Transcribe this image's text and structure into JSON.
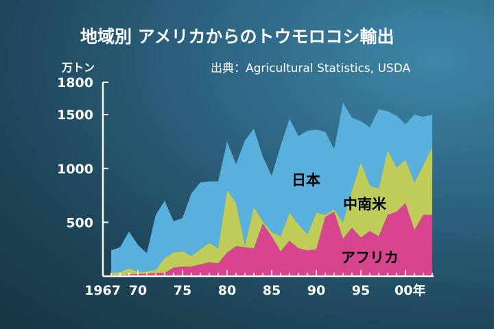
{
  "chart_data": {
    "type": "area",
    "stacked": true,
    "title": "地域別 アメリカからのトウモロコシ輸出",
    "source": "出典：Agricultural Statistics, USDA",
    "unit_label": "万トン",
    "x": [
      1967,
      1968,
      1969,
      1970,
      1971,
      1972,
      1973,
      1974,
      1975,
      1976,
      1977,
      1978,
      1979,
      1980,
      1981,
      1982,
      1983,
      1984,
      1985,
      1986,
      1987,
      1988,
      1989,
      1990,
      1991,
      1992,
      1993,
      1994,
      1995,
      1996,
      1997,
      1998,
      1999,
      2000,
      2001,
      2002,
      2003
    ],
    "x_tick_labels": [
      {
        "x": 1967,
        "text": "1967"
      },
      {
        "x": 1970,
        "text": "70"
      },
      {
        "x": 1975,
        "text": "75"
      },
      {
        "x": 1980,
        "text": "80"
      },
      {
        "x": 1985,
        "text": "85"
      },
      {
        "x": 1990,
        "text": "90"
      },
      {
        "x": 1995,
        "text": "95"
      },
      {
        "x": 2000,
        "text": "00年"
      }
    ],
    "y_ticks": [
      500,
      1000,
      1500,
      1800
    ],
    "ylim": [
      0,
      1800
    ],
    "series": [
      {
        "name": "アフリカ",
        "color": "#d6458e",
        "values": [
          10,
          10,
          15,
          20,
          25,
          30,
          30,
          80,
          90,
          90,
          110,
          130,
          120,
          220,
          280,
          270,
          260,
          490,
          370,
          230,
          330,
          260,
          240,
          250,
          550,
          600,
          350,
          450,
          360,
          420,
          370,
          570,
          600,
          680,
          430,
          570,
          570
        ]
      },
      {
        "name": "中南米",
        "color": "#bfcc5a",
        "values": [
          20,
          30,
          60,
          20,
          20,
          30,
          140,
          140,
          140,
          100,
          140,
          180,
          140,
          580,
          400,
          20,
          380,
          20,
          40,
          140,
          260,
          220,
          150,
          340,
          20,
          20,
          150,
          350,
          700,
          420,
          440,
          600,
          410,
          400,
          440,
          460,
          630
        ]
      },
      {
        "name": "日本",
        "color": "#5ab0dc",
        "values": [
          210,
          230,
          340,
          250,
          170,
          510,
          530,
          290,
          310,
          580,
          620,
          570,
          620,
          450,
          360,
          970,
          730,
          600,
          520,
          840,
          870,
          820,
          960,
          770,
          770,
          560,
          1110,
          670,
          380,
          540,
          740,
          360,
          480,
          330,
          630,
          450,
          300
        ]
      }
    ]
  }
}
